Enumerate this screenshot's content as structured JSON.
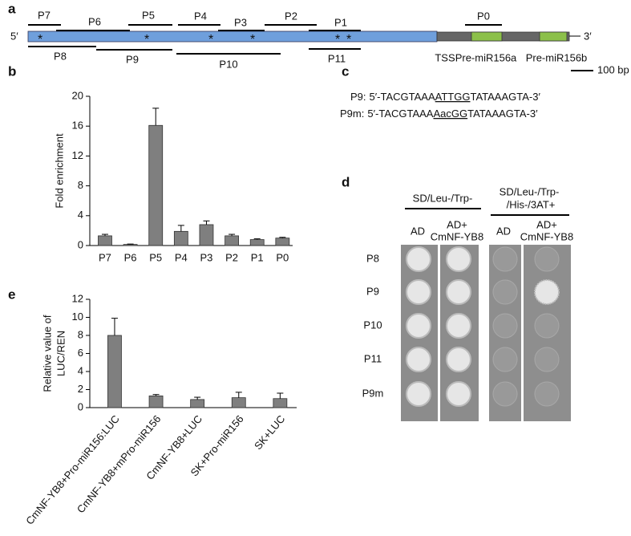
{
  "panel_labels": [
    "a",
    "b",
    "c",
    "d",
    "e"
  ],
  "diagram": {
    "ends": [
      "5′",
      "3′"
    ],
    "probes": [
      "P7",
      "P6",
      "P5",
      "P4",
      "P3",
      "P2",
      "P1",
      "P0",
      "P8",
      "P9",
      "P10",
      "P11"
    ],
    "features": [
      "TSS",
      "Pre-miR156a",
      "Pre-miR156b"
    ],
    "scale": "100 bp"
  },
  "chart_data": [
    {
      "type": "bar",
      "y_label": [
        "Fold enrichment"
      ],
      "categories": [
        "P7",
        "P6",
        "P5",
        "P4",
        "P3",
        "P2",
        "P1",
        "P0"
      ],
      "values": [
        1.3,
        0.15,
        16.1,
        1.9,
        2.8,
        1.3,
        0.8,
        1.0
      ],
      "errors": [
        0.2,
        0.05,
        2.3,
        0.8,
        0.5,
        0.2,
        0.1,
        0.1
      ],
      "color": "#7f7f7f",
      "ylim": [
        0,
        20
      ],
      "yticks": [
        0,
        4,
        8,
        12,
        16,
        20
      ]
    },
    {
      "type": "bar",
      "y_label": [
        "Relative value of",
        "LUC/REN"
      ],
      "categories": [
        "CmNF-YB8+Pro-miR156:LUC",
        "CmNF-YB8+mPro-miR156",
        "CmNF-YB8+LUC",
        "SK+Pro-miR156",
        "SK+LUC"
      ],
      "values": [
        8.0,
        1.3,
        0.9,
        1.1,
        1.0
      ],
      "errors": [
        1.9,
        0.15,
        0.25,
        0.6,
        0.6
      ],
      "color": "#7f7f7f",
      "ylim": [
        0,
        12
      ],
      "yticks": [
        0,
        2,
        4,
        6,
        8,
        10,
        12
      ]
    }
  ],
  "sequences": [
    {
      "name": "P9:",
      "pre": "5′-TACGTAAA",
      "site": "ATTGG",
      "post": "TATAAAGTA-3′"
    },
    {
      "name": "P9m:",
      "pre": "5′-TACGTAAA",
      "site": "AacGG",
      "post": "TATAAAGTA-3′"
    }
  ],
  "yeast": {
    "media": [
      [
        "SD/Leu-/Trp-"
      ],
      [
        "SD/Leu-/Trp-",
        "/His-/3AT+"
      ]
    ],
    "constructs": [
      [
        "AD"
      ],
      [
        "AD+",
        "CmNF-YB8"
      ]
    ],
    "rows": [
      "P8",
      "P9",
      "P10",
      "P11",
      "P9m"
    ]
  }
}
